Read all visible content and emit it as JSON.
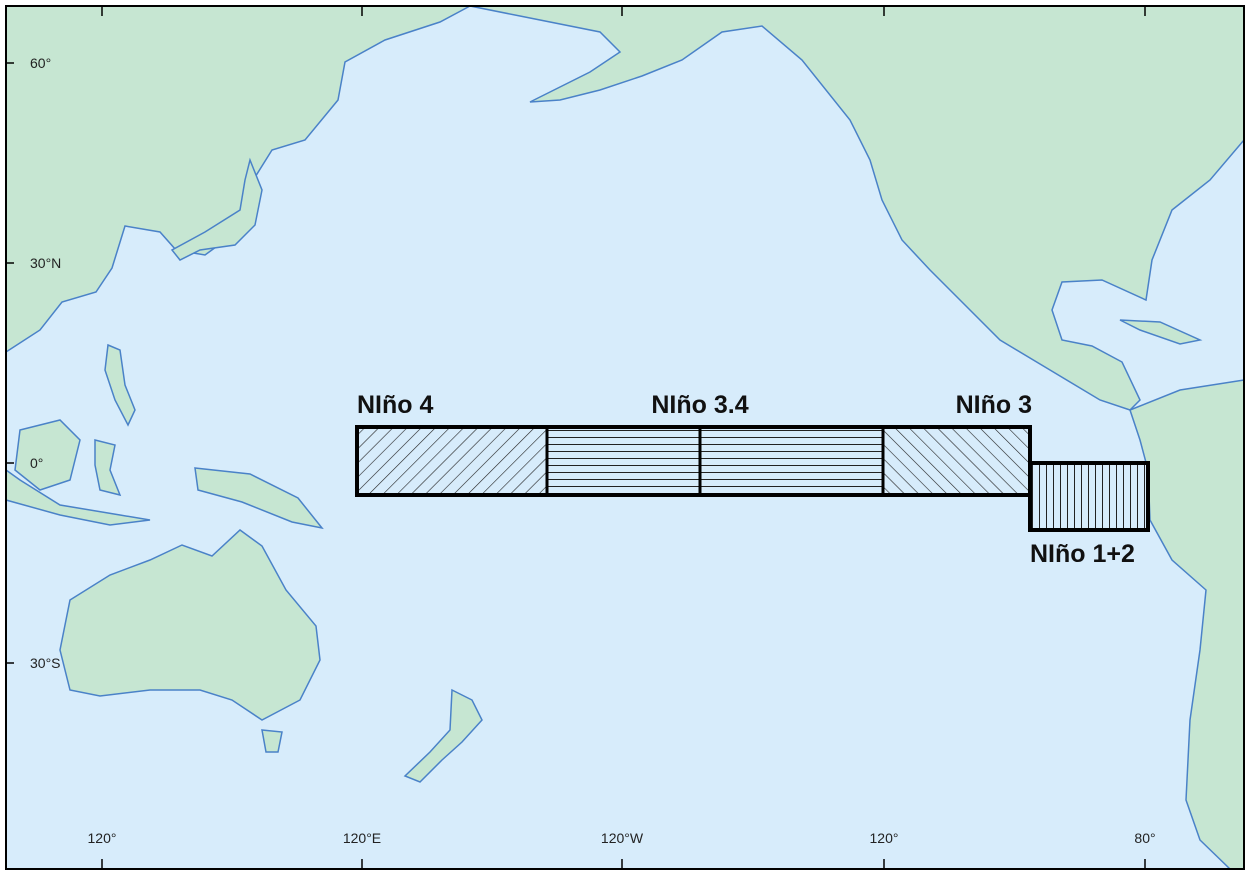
{
  "map": {
    "latitude_labels": [
      "60°",
      "30°N",
      "0°",
      "30°S"
    ],
    "longitude_labels": [
      "120°",
      "120°E",
      "120°W",
      "120°",
      "80°"
    ],
    "regions": [
      {
        "label": "NIño 4"
      },
      {
        "label": "NIño 3.4"
      },
      {
        "label": "NIño 3"
      },
      {
        "label": "NIño 1+2"
      }
    ]
  }
}
